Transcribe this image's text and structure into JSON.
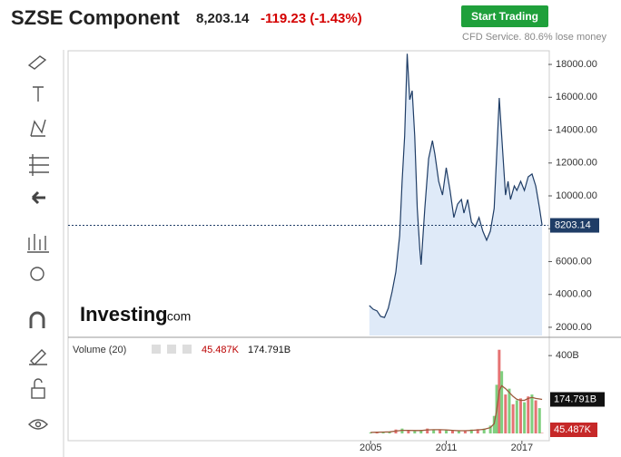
{
  "header": {
    "title": "SZSE Component",
    "price": "8,203.14",
    "change": "-119.23 (-1.43%)",
    "button": "Start Trading",
    "disclaimer": "CFD Service. 80.6% lose money"
  },
  "watermark": {
    "brand": "Investing",
    "suffix": ".com"
  },
  "chart_data": [
    {
      "type": "line",
      "fill": true,
      "color": "#1f3d66",
      "fill_color": "#dfeaf8",
      "x": [
        2004.9,
        2005.2,
        2005.5,
        2005.8,
        2006.1,
        2006.4,
        2006.7,
        2007.0,
        2007.3,
        2007.5,
        2007.7,
        2007.9,
        2008.1,
        2008.3,
        2008.5,
        2008.7,
        2008.9,
        2009.0,
        2009.3,
        2009.6,
        2009.9,
        2010.1,
        2010.4,
        2010.7,
        2011.0,
        2011.3,
        2011.6,
        2011.9,
        2012.2,
        2012.4,
        2012.7,
        2013.0,
        2013.3,
        2013.6,
        2013.9,
        2014.2,
        2014.5,
        2014.8,
        2015.0,
        2015.2,
        2015.4,
        2015.7,
        2015.9,
        2016.1,
        2016.4,
        2016.6,
        2016.9,
        2017.2,
        2017.5,
        2017.8,
        2018.1,
        2018.4,
        2018.6
      ],
      "values": [
        3325,
        3100,
        3000,
        2660,
        2600,
        3160,
        4150,
        5370,
        7570,
        10880,
        13640,
        18650,
        15850,
        16400,
        13640,
        9230,
        6750,
        5810,
        9230,
        12260,
        13360,
        12540,
        10880,
        10050,
        11710,
        10330,
        8680,
        9500,
        9780,
        8950,
        9780,
        8400,
        8120,
        8680,
        7850,
        7300,
        7850,
        9230,
        12540,
        15960,
        13640,
        10050,
        10880,
        9780,
        10600,
        10330,
        10880,
        10330,
        11160,
        11330,
        10600,
        9230,
        8203.14
      ],
      "xlim": [
        1981,
        2019.1
      ],
      "ylim": [
        1500,
        18720
      ],
      "yticks": [
        {
          "value": 2000,
          "label": "2000.00"
        },
        {
          "value": 4000,
          "label": "4000.00"
        },
        {
          "value": 6000,
          "label": "6000.00"
        },
        {
          "value": 8000,
          "label": "8000.00"
        },
        {
          "value": 10000,
          "label": "10000.00"
        },
        {
          "value": 12000,
          "label": "12000.00"
        },
        {
          "value": 14000,
          "label": "14000.00"
        },
        {
          "value": 16000,
          "label": "16000.00"
        },
        {
          "value": 18000,
          "label": "18000.00"
        }
      ]
    },
    {
      "type": "bar",
      "title": "Volume (20)",
      "x": [
        2005.0,
        2005.5,
        2006.0,
        2006.5,
        2007.0,
        2007.5,
        2008.0,
        2008.5,
        2009.0,
        2009.5,
        2010.0,
        2010.5,
        2011.0,
        2011.5,
        2012.0,
        2012.5,
        2013.0,
        2013.5,
        2014.0,
        2014.5,
        2014.8,
        2015.0,
        2015.2,
        2015.4,
        2015.7,
        2016.0,
        2016.3,
        2016.6,
        2016.9,
        2017.2,
        2017.5,
        2017.8,
        2018.1,
        2018.4,
        2018.6
      ],
      "values": [
        5000000000.0,
        6000000000.0,
        8000000000.0,
        10000000000.0,
        20000000000.0,
        25000000000.0,
        15000000000.0,
        12000000000.0,
        18000000000.0,
        25000000000.0,
        20000000000.0,
        18000000000.0,
        16000000000.0,
        14000000000.0,
        12000000000.0,
        14000000000.0,
        20000000000.0,
        22000000000.0,
        25000000000.0,
        40000000000.0,
        90000000000.0,
        250000000000.0,
        430000000000.0,
        320000000000.0,
        200000000000.0,
        230000000000.0,
        150000000000.0,
        170000000000.0,
        180000000000.0,
        160000000000.0,
        190000000000.0,
        200000000000.0,
        170000000000.0,
        130000000000.0,
        45487
      ],
      "value_labels": [
        null,
        null,
        null,
        null,
        null,
        null,
        null,
        null,
        null,
        null,
        null,
        null,
        null,
        null,
        null,
        null,
        null,
        null,
        null,
        null,
        null,
        null,
        null,
        null,
        null,
        null,
        null,
        null,
        null,
        null,
        null,
        null,
        null,
        null,
        "45.487K"
      ],
      "colors": [
        "#7fcf7f",
        "#e57373",
        "#7fcf7f",
        "#7fcf7f",
        "#e57373",
        "#7fcf7f",
        "#e57373",
        "#7fcf7f",
        "#7fcf7f",
        "#e57373",
        "#7fcf7f",
        "#e57373",
        "#7fcf7f",
        "#e57373",
        "#7fcf7f",
        "#e57373",
        "#7fcf7f",
        "#e57373",
        "#7fcf7f",
        "#7fcf7f",
        "#7fcf7f",
        "#7fcf7f",
        "#e57373",
        "#7fcf7f",
        "#e57373",
        "#7fcf7f",
        "#e57373",
        "#7fcf7f",
        "#e57373",
        "#7fcf7f",
        "#e57373",
        "#7fcf7f",
        "#e57373",
        "#7fcf7f",
        "#e57373"
      ],
      "average": [
        5000000000.0,
        6000000000.0,
        7000000000.0,
        8000000000.0,
        12000000000.0,
        16000000000.0,
        16000000000.0,
        15000000000.0,
        15000000000.0,
        18000000000.0,
        19000000000.0,
        19000000000.0,
        18000000000.0,
        16000000000.0,
        14000000000.0,
        14000000000.0,
        16000000000.0,
        18000000000.0,
        21000000000.0,
        30000000000.0,
        50000000000.0,
        120000000000.0,
        220000000000.0,
        245000000000.0,
        230000000000.0,
        210000000000.0,
        190000000000.0,
        175000000000.0,
        170000000000.0,
        170000000000.0,
        180000000000.0,
        185000000000.0,
        180000000000.0,
        177000000000.0,
        174791000000
      ],
      "average_labels": [
        null,
        null,
        null,
        null,
        null,
        null,
        null,
        null,
        null,
        null,
        null,
        null,
        null,
        null,
        null,
        null,
        null,
        null,
        null,
        null,
        null,
        null,
        null,
        null,
        null,
        null,
        null,
        null,
        null,
        null,
        null,
        null,
        null,
        null,
        "174.791B"
      ],
      "average_color": "#9c5a3c",
      "xlim": [
        1981,
        2019.1
      ],
      "ylim": [
        0,
        480000000000
      ],
      "yticks": [
        {
          "value": 400000000000,
          "label": "400B"
        }
      ],
      "xticks": [
        2005,
        2011,
        2017
      ]
    }
  ]
}
